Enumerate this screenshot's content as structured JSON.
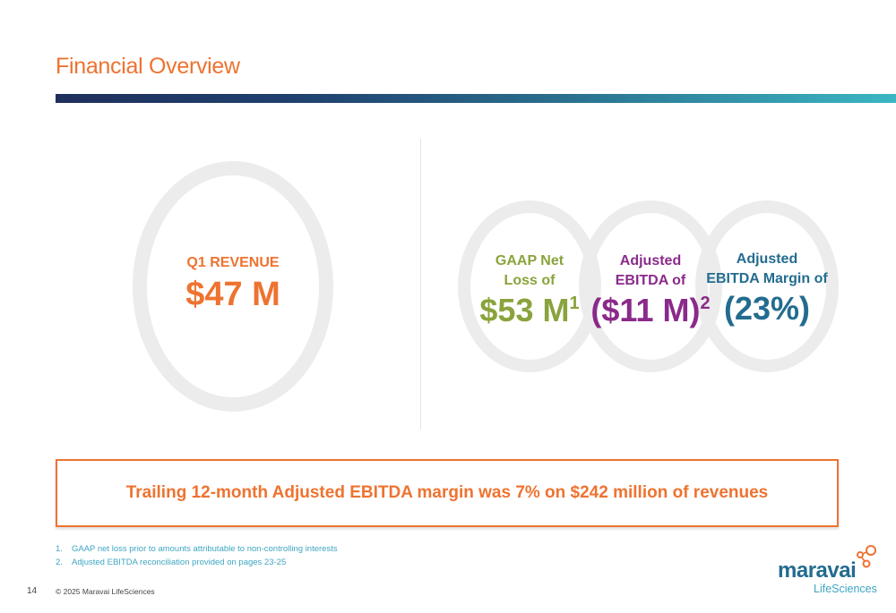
{
  "slide": {
    "title": "Financial Overview",
    "page_number": "14",
    "copyright": "© 2025 Maravai LifeSciences"
  },
  "revenue": {
    "label": "Q1 REVENUE",
    "value": "$47 M"
  },
  "metrics": [
    {
      "label_line1": "GAAP Net",
      "label_line2": "Loss of",
      "value": "$53 M",
      "superscript": "1"
    },
    {
      "label_line1": "Adjusted",
      "label_line2": "EBITDA of",
      "value": "($11 M)",
      "superscript": "2"
    },
    {
      "label_line1": "Adjusted",
      "label_line2": "EBITDA Margin of",
      "value": "(23%)",
      "superscript": ""
    }
  ],
  "callout": {
    "text": "Trailing 12-month Adjusted EBITDA margin was 7% on $242 million of revenues"
  },
  "footnotes": [
    {
      "num": "1.",
      "text": "GAAP net loss prior to amounts attributable to non-controlling interests"
    },
    {
      "num": "2.",
      "text": "Adjusted EBITDA reconciliation provided on pages 23-25"
    }
  ],
  "logo": {
    "wordmark": "maravai",
    "subtitle": "LifeSciences"
  },
  "colors": {
    "accent_orange": "#ee7330",
    "gaap_green": "#8aa33c",
    "ebitda_purple": "#8a2a8a",
    "margin_blue": "#236c8f",
    "footnote_teal": "#3fa6c2"
  }
}
